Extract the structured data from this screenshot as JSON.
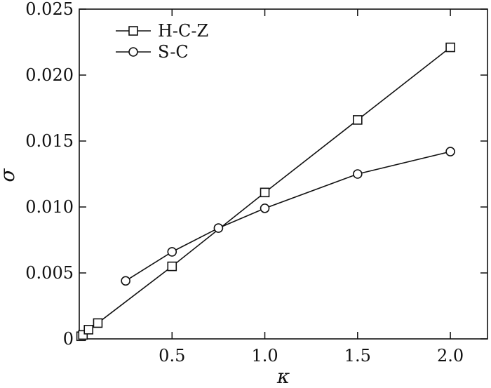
{
  "chart_data": {
    "type": "line",
    "title": "",
    "xlabel": "κ",
    "ylabel": "σ",
    "xlim": [
      0,
      2.2
    ],
    "ylim": [
      0,
      0.025
    ],
    "x_ticks": [
      0.5,
      1.0,
      1.5,
      2.0
    ],
    "x_tick_labels": [
      "0.5",
      "1.0",
      "1.5",
      "2.0"
    ],
    "y_ticks": [
      0,
      0.005,
      0.01,
      0.015,
      0.02,
      0.025
    ],
    "y_tick_labels": [
      "0",
      "0.005",
      "0.010",
      "0.015",
      "0.020",
      "0.025"
    ],
    "grid": false,
    "legend_position": "top-left",
    "series": [
      {
        "name": "H-C-Z",
        "marker": "square",
        "x": [
          0.01,
          0.02,
          0.05,
          0.1,
          0.5,
          1.0,
          1.5,
          2.0
        ],
        "y": [
          0.0002,
          0.0003,
          0.0007,
          0.0012,
          0.0055,
          0.0111,
          0.0166,
          0.0221
        ]
      },
      {
        "name": "S-C",
        "marker": "circle",
        "x": [
          0.25,
          0.5,
          0.75,
          1.0,
          1.5,
          2.0
        ],
        "y": [
          0.0044,
          0.0066,
          0.0084,
          0.0099,
          0.0125,
          0.0142
        ]
      }
    ]
  }
}
